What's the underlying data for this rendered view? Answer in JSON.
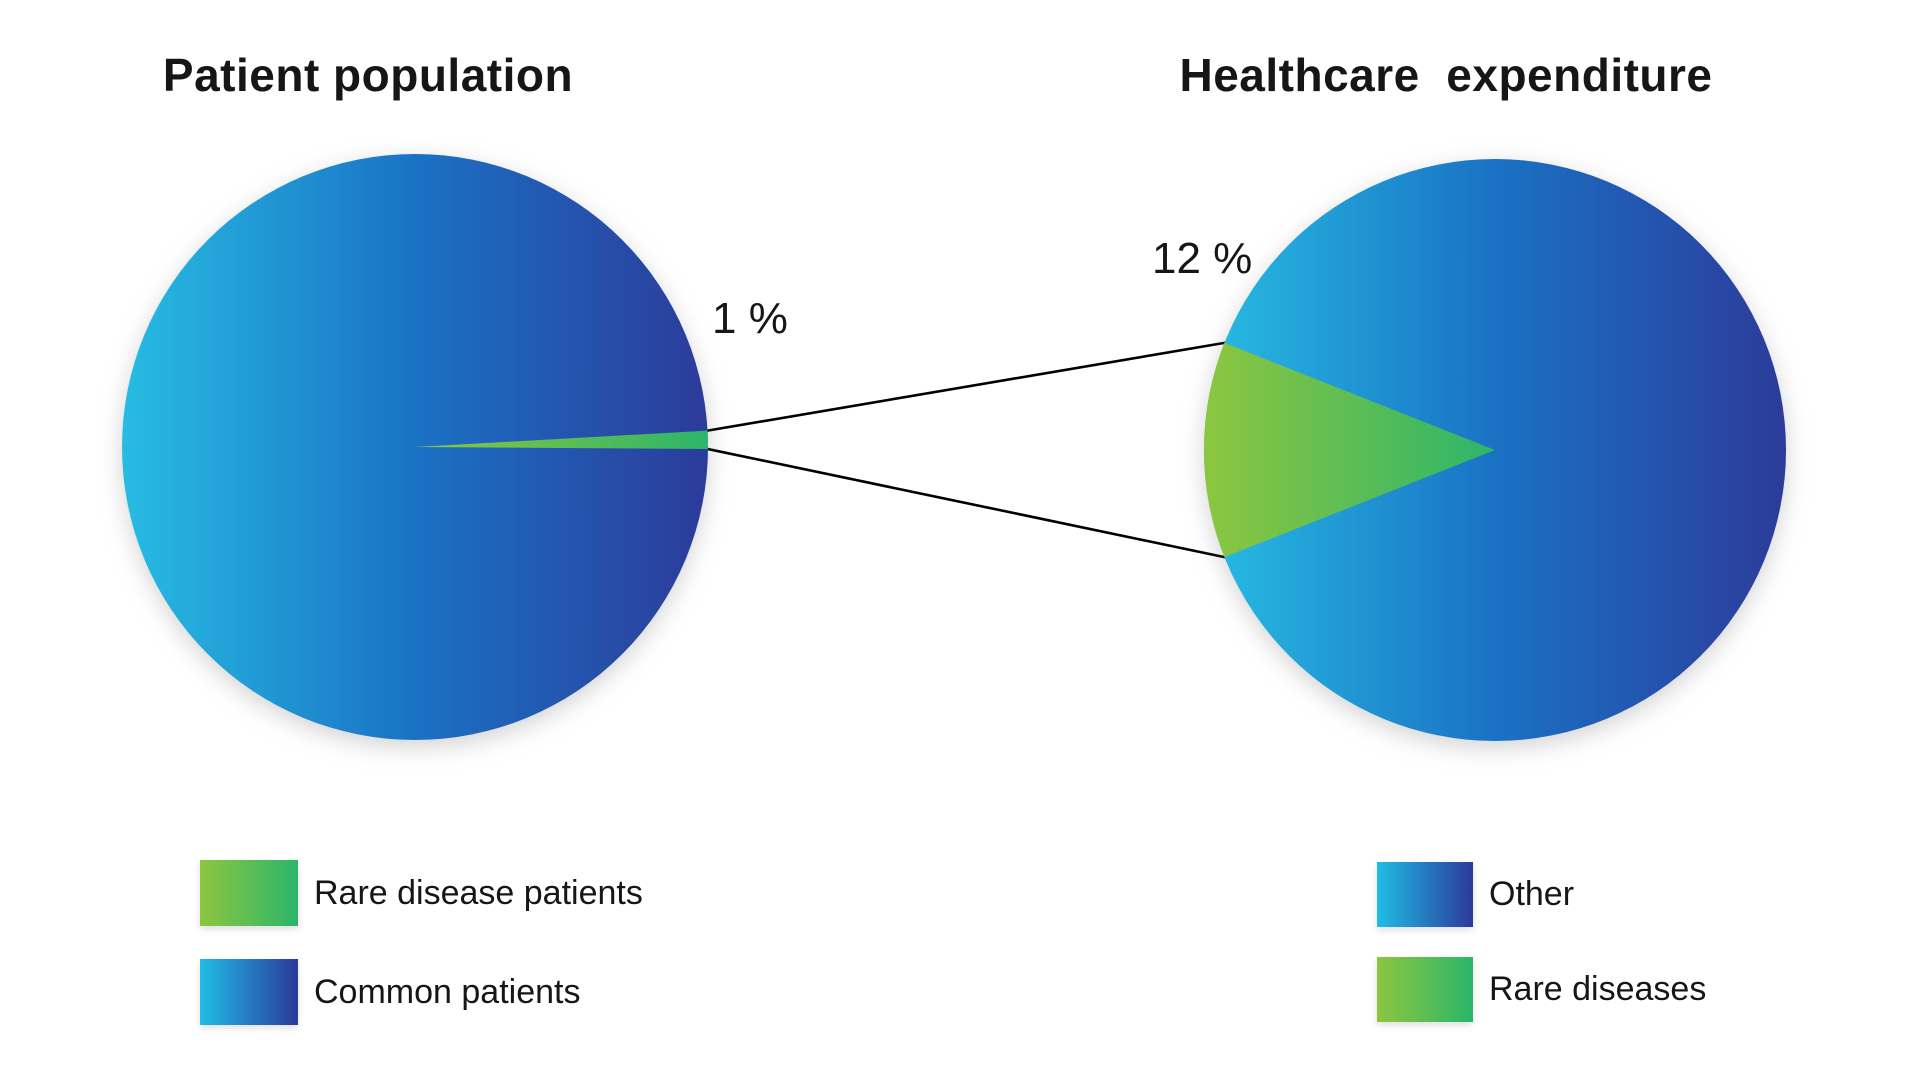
{
  "charts": {
    "left": {
      "title": "Patient population",
      "percent_label": "1 %",
      "legend": [
        {
          "label": "Rare disease patients",
          "swatch": "green-gradient"
        },
        {
          "label": "Common patients",
          "swatch": "blue-gradient"
        }
      ]
    },
    "right": {
      "title": "Healthcare  expenditure",
      "percent_label": "12 %",
      "legend": [
        {
          "label": "Other",
          "swatch": "blue-gradient"
        },
        {
          "label": "Rare diseases",
          "swatch": "green-gradient"
        }
      ]
    }
  },
  "chart_data": [
    {
      "type": "pie",
      "title": "Patient population",
      "labels": [
        "Rare disease patients",
        "Common patients"
      ],
      "values": [
        1,
        99
      ],
      "unit": "percent",
      "annotation": "1 %",
      "legend_position": "below-left",
      "slice_colors": [
        "green-gradient",
        "blue-gradient"
      ]
    },
    {
      "type": "pie",
      "title": "Healthcare  expenditure",
      "labels": [
        "Rare diseases",
        "Other"
      ],
      "values": [
        12,
        88
      ],
      "unit": "percent",
      "annotation": "12 %",
      "legend_position": "below-right",
      "slice_colors": [
        "green-gradient",
        "blue-gradient"
      ]
    }
  ],
  "colors": {
    "blue_gradient_start": "#27bce2",
    "blue_gradient_mid": "#1a72c5",
    "blue_gradient_end": "#2c3b9a",
    "green_gradient_start": "#8dc63f",
    "green_gradient_end": "#2db56a",
    "text": "#161616",
    "connector_line": "#000000",
    "background": "#ffffff"
  }
}
